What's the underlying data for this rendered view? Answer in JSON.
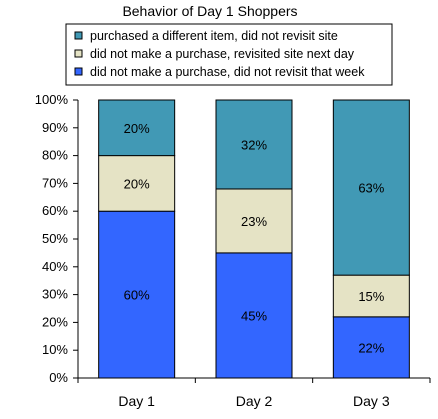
{
  "chart_data": {
    "type": "bar",
    "stacked": true,
    "title": "Behavior of Day 1 Shoppers",
    "categories": [
      "Day 1",
      "Day 2",
      "Day 3"
    ],
    "ylim": [
      0,
      100
    ],
    "y_ticks": [
      "0%",
      "10%",
      "20%",
      "30%",
      "40%",
      "50%",
      "60%",
      "70%",
      "80%",
      "90%",
      "100%"
    ],
    "series": [
      {
        "name": "did not make a purchase, did not revisit that week",
        "color": "#3366ff",
        "values": [
          60,
          45,
          22
        ],
        "labels": [
          "60%",
          "45%",
          "22%"
        ]
      },
      {
        "name": "did not make a purchase, revisited site next day",
        "color": "#e5e3c5",
        "values": [
          20,
          23,
          15
        ],
        "labels": [
          "20%",
          "23%",
          "15%"
        ]
      },
      {
        "name": "purchased a different item, did not revisit site",
        "color": "#4199b5",
        "values": [
          20,
          32,
          63
        ],
        "labels": [
          "20%",
          "32%",
          "63%"
        ]
      }
    ],
    "legend_order": [
      2,
      1,
      0
    ],
    "legend_position": "top",
    "grid": false
  }
}
